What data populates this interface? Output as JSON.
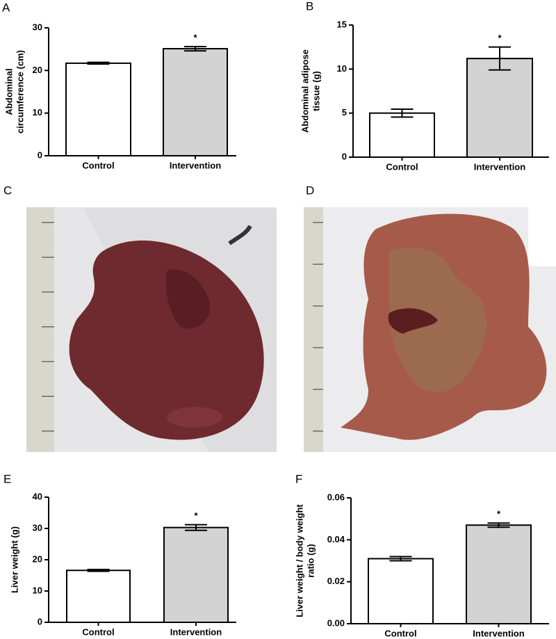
{
  "panel_labels": [
    "A",
    "B",
    "C",
    "D",
    "E",
    "F"
  ],
  "chart_data": [
    {
      "type": "bar",
      "ylabel": [
        "Abdominal",
        "circumference (cm)"
      ],
      "categories": [
        "Control",
        "Intervention"
      ],
      "values": [
        21.7,
        25.1
      ],
      "errors": [
        0.2,
        0.5
      ],
      "colors": [
        "#ffffff",
        "#d3d3d3"
      ],
      "annotations": [
        null,
        "*"
      ],
      "ylim": [
        0,
        30
      ],
      "yticks": [
        0,
        10,
        20,
        30
      ]
    },
    {
      "type": "bar",
      "ylabel": [
        "Abdominal adipose",
        "tissue (g)"
      ],
      "categories": [
        "Control",
        "Intervention"
      ],
      "values": [
        5.0,
        11.2
      ],
      "errors": [
        0.45,
        1.3
      ],
      "colors": [
        "#ffffff",
        "#d3d3d3"
      ],
      "annotations": [
        null,
        "*"
      ],
      "ylim": [
        0,
        15
      ],
      "yticks": [
        0,
        5,
        10,
        15
      ]
    },
    {
      "type": "bar",
      "ylabel": [
        "Liver weight  (g)"
      ],
      "categories": [
        "Control",
        "Intervention"
      ],
      "values": [
        16.6,
        30.3
      ],
      "errors": [
        0.3,
        0.9
      ],
      "colors": [
        "#ffffff",
        "#d3d3d3"
      ],
      "annotations": [
        null,
        "*"
      ],
      "ylim": [
        0,
        40
      ],
      "yticks": [
        0,
        10,
        20,
        30,
        40
      ]
    },
    {
      "type": "bar",
      "ylabel": [
        "Liver weight / body weight",
        "ratio (g)"
      ],
      "categories": [
        "Control",
        "Intervention"
      ],
      "values": [
        0.031,
        0.047
      ],
      "errors": [
        0.001,
        0.001
      ],
      "colors": [
        "#ffffff",
        "#d3d3d3"
      ],
      "annotations": [
        null,
        "*"
      ],
      "ylim": [
        0,
        0.06
      ],
      "yticks": [
        {
          "value": 0,
          "label": "0.00"
        },
        0.02,
        0.04,
        0.06
      ]
    }
  ]
}
